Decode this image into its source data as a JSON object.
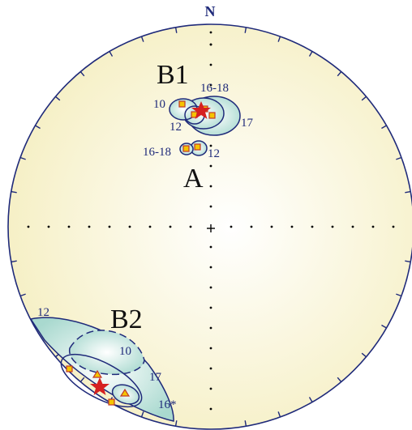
{
  "diagram": {
    "north_label": "N",
    "group_labels": {
      "b1": "B1",
      "a": "A",
      "b2": "B2"
    },
    "site_labels": {
      "b1_10": "10",
      "b1_16_18": "16-18",
      "b1_12": "12",
      "b1_17": "17",
      "a_16_18": "16-18",
      "a_12": "12",
      "b2_12": "12",
      "b2_10": "10",
      "b2_17": "17",
      "b2_16star": "16*"
    },
    "colors": {
      "net_fill_center": "#ffffff",
      "net_fill_edge": "#f7f2c9",
      "ellipse_fill": "#bfe3dc",
      "ellipse_stroke": "#1f2a7a",
      "marker_fill": "#f5c400",
      "marker_stroke": "#c0392b",
      "star": "#d62020",
      "text": "#1f2a7a"
    },
    "icons": {
      "site_mean": "square-marker",
      "reversed_mean": "triangle-marker",
      "group_mean": "star-icon"
    }
  }
}
